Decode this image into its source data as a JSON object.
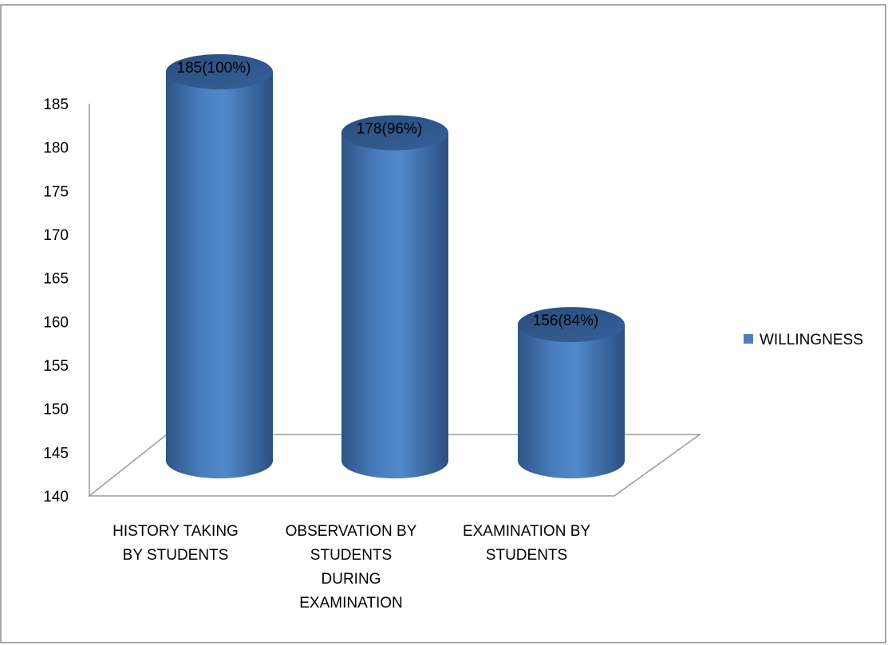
{
  "chart_data": {
    "type": "bar",
    "style": "3d-cylinder",
    "title": "",
    "xlabel": "",
    "ylabel": "",
    "categories": [
      [
        "HISTORY TAKING",
        "BY STUDENTS"
      ],
      [
        "OBSERVATION BY",
        "STUDENTS",
        "DURING",
        "EXAMINATION"
      ],
      [
        "EXAMINATION BY",
        "STUDENTS"
      ]
    ],
    "series": [
      {
        "name": "WILLINGNESS",
        "color": "#4f81bd",
        "values": [
          185,
          178,
          156
        ],
        "data_labels": [
          "185(100%)",
          "178(96%)",
          "156(84%)"
        ]
      }
    ],
    "ylim": [
      140,
      185
    ],
    "yticks": [
      "140",
      "145",
      "150",
      "155",
      "160",
      "165",
      "170",
      "175",
      "180",
      "185"
    ],
    "grid": false,
    "legend_position": "right"
  }
}
